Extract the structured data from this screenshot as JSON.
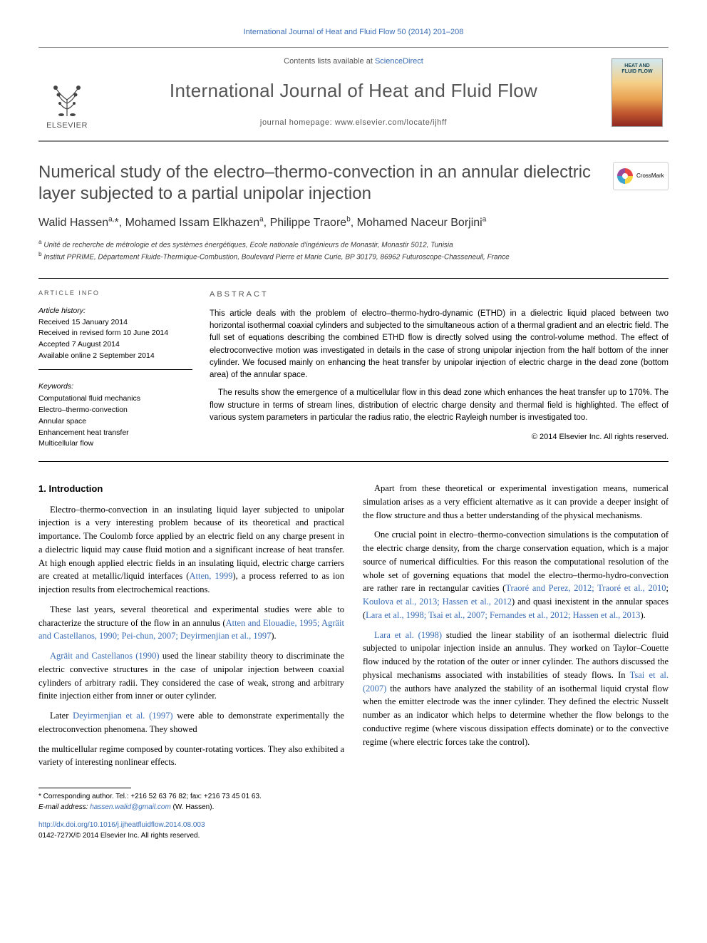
{
  "citation_header": "International Journal of Heat and Fluid Flow 50 (2014) 201–208",
  "masthead": {
    "publisher_name": "ELSEVIER",
    "contents_prefix": "Contents lists available at ",
    "contents_link": "ScienceDirect",
    "journal_title": "International Journal of Heat and Fluid Flow",
    "homepage_prefix": "journal homepage: ",
    "homepage_url": "www.elsevier.com/locate/ijhff",
    "cover_label_line1": "HEAT AND",
    "cover_label_line2": "FLUID FLOW"
  },
  "crossmark_label": "CrossMark",
  "article": {
    "title": "Numerical study of the electro–thermo-convection in an annular dielectric layer subjected to a partial unipolar injection",
    "authors_html": "Walid Hassen<sup>a,</sup>*, Mohamed Issam Elkhazen<sup>a</sup>, Philippe Traore<sup>b</sup>, Mohamed Naceur Borjini<sup>a</sup>",
    "affiliations": {
      "a": "Unité de recherche de métrologie et des systèmes énergétiques, Ecole nationale d'ingénieurs de Monastir, Monastir 5012, Tunisia",
      "b": "Institut PPRIME, Département Fluide-Thermique-Combustion, Boulevard Pierre et Marie Curie, BP 30179, 86962 Futuroscope-Chasseneuil, France"
    }
  },
  "info": {
    "heading": "article info",
    "history_label": "Article history:",
    "received": "Received 15 January 2014",
    "revised": "Received in revised form 10 June 2014",
    "accepted": "Accepted 7 August 2014",
    "online": "Available online 2 September 2014",
    "keywords_label": "Keywords:",
    "keywords": [
      "Computational fluid mechanics",
      "Electro–thermo-convection",
      "Annular space",
      "Enhancement heat transfer",
      "Multicellular flow"
    ]
  },
  "abstract": {
    "heading": "abstract",
    "p1": "This article deals with the problem of electro–thermo-hydro-dynamic (ETHD) in a dielectric liquid placed between two horizontal isothermal coaxial cylinders and subjected to the simultaneous action of a thermal gradient and an electric field. The full set of equations describing the combined ETHD flow is directly solved using the control-volume method. The effect of electroconvective motion was investigated in details in the case of strong unipolar injection from the half bottom of the inner cylinder. We focused mainly on enhancing the heat transfer by unipolar injection of electric charge in the dead zone (bottom area) of the annular space.",
    "p2": "The results show the emergence of a multicellular flow in this dead zone which enhances the heat transfer up to 170%. The flow structure in terms of stream lines, distribution of electric charge density and thermal field is highlighted. The effect of various system parameters in particular the radius ratio, the electric Rayleigh number is investigated too.",
    "copyright": "© 2014 Elsevier Inc. All rights reserved."
  },
  "body": {
    "section1_heading": "1. Introduction",
    "p1a": "Electro–thermo-convection in an insulating liquid layer subjected to unipolar injection is a very interesting problem because of its theoretical and practical importance. The Coulomb force applied by an electric field on any charge present in a dielectric liquid may cause fluid motion and a significant increase of heat transfer. At high enough applied electric fields in an insulating liquid, electric charge carriers are created at metallic/liquid interfaces (",
    "p1_ref1": "Atten, 1999",
    "p1b": "), a process referred to as ion injection results from electrochemical reactions.",
    "p2a": "These last years, several theoretical and experimental studies were able to characterize the structure of the flow in an annulus (",
    "p2_ref1": "Atten and Elouadie, 1995; Agräit and Castellanos, 1990; Pei-chun, 2007; Deyirmenjian et al., 1997",
    "p2b": ").",
    "p3a": "",
    "p3_ref1": "Agräit and Castellanos (1990)",
    "p3b": " used the linear stability theory to discriminate the electric convective structures in the case of unipolar injection between coaxial cylinders of arbitrary radii. They considered the case of weak, strong and arbitrary finite injection either from inner or outer cylinder.",
    "p4a": "Later ",
    "p4_ref1": "Deyirmenjian et al. (1997)",
    "p4b": " were able to demonstrate experimentally the electroconvection phenomena. They showed",
    "p5": "the multicellular regime composed by counter-rotating vortices. They also exhibited a variety of interesting nonlinear effects.",
    "p6": "Apart from these theoretical or experimental investigation means, numerical simulation arises as a very efficient alternative as it can provide a deeper insight of the flow structure and thus a better understanding of the physical mechanisms.",
    "p7a": "One crucial point in electro–thermo-convection simulations is the computation of the electric charge density, from the charge conservation equation, which is a major source of numerical difficulties. For this reason the computational resolution of the whole set of governing equations that model the electro–thermo-hydro-convection are rather rare in rectangular cavities (",
    "p7_ref1": "Traoré and Perez, 2012; Traoré et al., 2010",
    "p7b": "; ",
    "p7_ref2": "Koulova et al., 2013; Hassen et al., 2012",
    "p7c": ") and quasi inexistent in the annular spaces (",
    "p7_ref3": "Lara et al., 1998; Tsai et al., 2007; Fernandes et al., 2012; Hassen et al., 2013",
    "p7d": ").",
    "p8a": "",
    "p8_ref1": "Lara et al. (1998)",
    "p8b": " studied the linear stability of an isothermal dielectric fluid subjected to unipolar injection inside an annulus. They worked on Taylor–Couette flow induced by the rotation of the outer or inner cylinder. The authors discussed the physical mechanisms associated with instabilities of steady flows. In ",
    "p8_ref2": "Tsai et al. (2007)",
    "p8c": " the authors have analyzed the stability of an isothermal liquid crystal flow when the emitter electrode was the inner cylinder. They defined the electric Nusselt number as an indicator which helps to determine whether the flow belongs to the conductive regime (where viscous dissipation effects dominate) or to the convective regime (where electric forces take the control)."
  },
  "footer": {
    "corresponding": "* Corresponding author. Tel.: +216 52 63 76 82; fax: +216 73 45 01 63.",
    "email_label": "E-mail address: ",
    "email": "hassen.walid@gmail.com",
    "email_name": " (W. Hassen).",
    "doi": "http://dx.doi.org/10.1016/j.ijheatfluidflow.2014.08.003",
    "issn": "0142-727X/© 2014 Elsevier Inc. All rights reserved."
  },
  "colors": {
    "link": "#3a6db5",
    "heading_gray": "#4a4a4a",
    "meta_gray": "#555555"
  }
}
